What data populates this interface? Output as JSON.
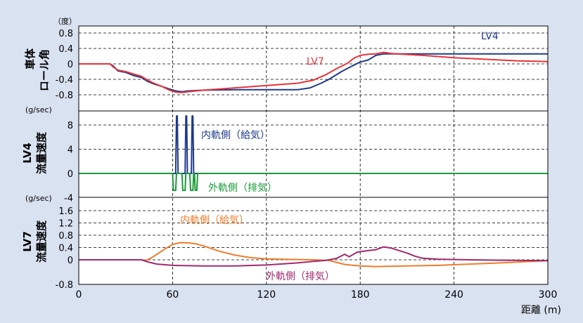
{
  "colors": {
    "background": "#d9e2f1",
    "lv4": "#1f3a8a",
    "lv7": "#e8333a",
    "lv4_outer": "#1a9a3a",
    "lv7_inner": "#ee7d2c",
    "lv7_outer": "#a02a6e"
  },
  "x_axis": {
    "label": "距離 (m)",
    "ticks": [
      "0",
      "60",
      "120",
      "180",
      "240",
      "300"
    ],
    "range": [
      0,
      300
    ]
  },
  "chart_data": [
    {
      "type": "line",
      "panel": "top",
      "ylabel": "車体\nロール角",
      "unit": "（度）",
      "ylim": [
        -1.0,
        1.05
      ],
      "yticks": [
        "0.8",
        "0.4",
        "0",
        "-0.4",
        "-0.8"
      ],
      "grid": true,
      "annotations": [
        "LV4",
        "LV7"
      ],
      "series": [
        {
          "name": "LV4",
          "color": "#1f3a8a",
          "points": [
            [
              0,
              0
            ],
            [
              20,
              0
            ],
            [
              22,
              -0.05
            ],
            [
              25,
              -0.18
            ],
            [
              30,
              -0.22
            ],
            [
              35,
              -0.3
            ],
            [
              40,
              -0.35
            ],
            [
              44,
              -0.45
            ],
            [
              48,
              -0.52
            ],
            [
              53,
              -0.58
            ],
            [
              58,
              -0.65
            ],
            [
              62,
              -0.7
            ],
            [
              66,
              -0.72
            ],
            [
              70,
              -0.7
            ],
            [
              80,
              -0.68
            ],
            [
              100,
              -0.67
            ],
            [
              120,
              -0.67
            ],
            [
              140,
              -0.67
            ],
            [
              148,
              -0.62
            ],
            [
              155,
              -0.5
            ],
            [
              160,
              -0.4
            ],
            [
              168,
              -0.2
            ],
            [
              175,
              -0.05
            ],
            [
              180,
              0.05
            ],
            [
              185,
              0.1
            ],
            [
              190,
              0.22
            ],
            [
              195,
              0.26
            ],
            [
              200,
              0.26
            ],
            [
              220,
              0.26
            ],
            [
              250,
              0.26
            ],
            [
              280,
              0.26
            ],
            [
              300,
              0.26
            ]
          ]
        },
        {
          "name": "LV7",
          "color": "#e8333a",
          "points": [
            [
              0,
              0
            ],
            [
              20,
              0
            ],
            [
              22,
              -0.08
            ],
            [
              25,
              -0.16
            ],
            [
              30,
              -0.2
            ],
            [
              35,
              -0.26
            ],
            [
              40,
              -0.32
            ],
            [
              44,
              -0.42
            ],
            [
              48,
              -0.5
            ],
            [
              53,
              -0.58
            ],
            [
              58,
              -0.68
            ],
            [
              62,
              -0.73
            ],
            [
              66,
              -0.74
            ],
            [
              70,
              -0.72
            ],
            [
              80,
              -0.68
            ],
            [
              100,
              -0.62
            ],
            [
              120,
              -0.56
            ],
            [
              140,
              -0.5
            ],
            [
              150,
              -0.42
            ],
            [
              158,
              -0.28
            ],
            [
              165,
              -0.12
            ],
            [
              172,
              0.02
            ],
            [
              176,
              0.15
            ],
            [
              180,
              0.22
            ],
            [
              185,
              0.25
            ],
            [
              190,
              0.26
            ],
            [
              195,
              0.3
            ],
            [
              200,
              0.27
            ],
            [
              220,
              0.22
            ],
            [
              240,
              0.16
            ],
            [
              260,
              0.12
            ],
            [
              280,
              0.08
            ],
            [
              300,
              0.06
            ]
          ]
        }
      ]
    },
    {
      "type": "line",
      "panel": "middle",
      "ylabel": "LV4\n流量速度",
      "unit": "(g/sec)",
      "ylim": [
        -5,
        10
      ],
      "yticks": [
        "8",
        "4",
        "0",
        "-4"
      ],
      "grid": true,
      "series": [
        {
          "name": "内軌側（給気）",
          "color": "#1f3a8a",
          "points": [
            [
              0,
              0
            ],
            [
              62,
              0
            ],
            [
              62.5,
              9.5
            ],
            [
              63,
              9.5
            ],
            [
              63.5,
              0
            ],
            [
              68,
              0
            ],
            [
              68.5,
              9.5
            ],
            [
              69,
              9.5
            ],
            [
              69.5,
              0
            ],
            [
              72,
              0
            ],
            [
              72.5,
              9.5
            ],
            [
              73,
              9.5
            ],
            [
              73.5,
              0
            ],
            [
              300,
              0
            ]
          ]
        },
        {
          "name": "外軌側（排気）",
          "color": "#1a9a3a",
          "points": [
            [
              0,
              0
            ],
            [
              60,
              0
            ],
            [
              60.5,
              -2.8
            ],
            [
              62,
              -2.8
            ],
            [
              62.5,
              0
            ],
            [
              66,
              0
            ],
            [
              66.5,
              -2.8
            ],
            [
              68,
              -2.8
            ],
            [
              68.5,
              0
            ],
            [
              71,
              0
            ],
            [
              71.5,
              -2.8
            ],
            [
              73,
              -2.8
            ],
            [
              73.5,
              0
            ],
            [
              74,
              0
            ],
            [
              74.5,
              -2.8
            ],
            [
              75.5,
              -2.8
            ],
            [
              76,
              0
            ],
            [
              300,
              0
            ]
          ]
        }
      ]
    },
    {
      "type": "line",
      "panel": "bottom",
      "ylabel": "LV7\n流量速度",
      "unit": "(g/sec)",
      "ylim": [
        -0.8,
        1.8
      ],
      "yticks": [
        "1.6",
        "1.2",
        "0.8",
        "0.4",
        "0",
        "-0.8"
      ],
      "grid": true,
      "series": [
        {
          "name": "内軌側（給気）",
          "color": "#ee7d2c",
          "points": [
            [
              0,
              0
            ],
            [
              40,
              0
            ],
            [
              43,
              -0.02
            ],
            [
              46,
              0.05
            ],
            [
              50,
              0.18
            ],
            [
              55,
              0.35
            ],
            [
              60,
              0.5
            ],
            [
              65,
              0.56
            ],
            [
              70,
              0.55
            ],
            [
              75,
              0.52
            ],
            [
              80,
              0.45
            ],
            [
              90,
              0.28
            ],
            [
              100,
              0.15
            ],
            [
              110,
              0.07
            ],
            [
              120,
              0.03
            ],
            [
              140,
              0.01
            ],
            [
              150,
              0
            ],
            [
              160,
              -0.02
            ],
            [
              170,
              -0.15
            ],
            [
              180,
              -0.2
            ],
            [
              190,
              -0.22
            ],
            [
              210,
              -0.2
            ],
            [
              230,
              -0.18
            ],
            [
              250,
              -0.14
            ],
            [
              270,
              -0.1
            ],
            [
              290,
              -0.05
            ],
            [
              300,
              -0.03
            ]
          ]
        },
        {
          "name": "外軌側（排気）",
          "color": "#a02a6e",
          "points": [
            [
              0,
              0
            ],
            [
              40,
              0
            ],
            [
              45,
              -0.08
            ],
            [
              50,
              -0.14
            ],
            [
              60,
              -0.18
            ],
            [
              80,
              -0.2
            ],
            [
              100,
              -0.2
            ],
            [
              120,
              -0.17
            ],
            [
              140,
              -0.1
            ],
            [
              150,
              -0.05
            ],
            [
              158,
              -0.02
            ],
            [
              165,
              0.05
            ],
            [
              170,
              0.18
            ],
            [
              173,
              0.1
            ],
            [
              178,
              0.25
            ],
            [
              185,
              0.3
            ],
            [
              190,
              0.33
            ],
            [
              195,
              0.42
            ],
            [
              200,
              0.38
            ],
            [
              205,
              0.3
            ],
            [
              210,
              0.22
            ],
            [
              215,
              0.12
            ],
            [
              220,
              0.05
            ],
            [
              230,
              0.02
            ],
            [
              250,
              0
            ],
            [
              280,
              -0.02
            ],
            [
              300,
              -0.03
            ]
          ]
        }
      ]
    }
  ],
  "labels": {
    "top_unit": "（度）",
    "top_ylabel_1": "車体",
    "top_ylabel_2": "ロール角",
    "lv4_tag": "LV4",
    "lv7_tag": "LV7",
    "mid_unit": "(g/sec)",
    "mid_ylabel_1": "LV4",
    "mid_ylabel_2": "流量速度",
    "mid_inner": "内軌側（給気）",
    "mid_outer": "外軌側（排気）",
    "bot_unit": "(g/sec)",
    "bot_ylabel_1": "LV7",
    "bot_ylabel_2": "流量速度",
    "bot_inner": "内軌側（給気）",
    "bot_outer": "外軌側（排気）",
    "xaxis_label": "距離 (m)"
  }
}
